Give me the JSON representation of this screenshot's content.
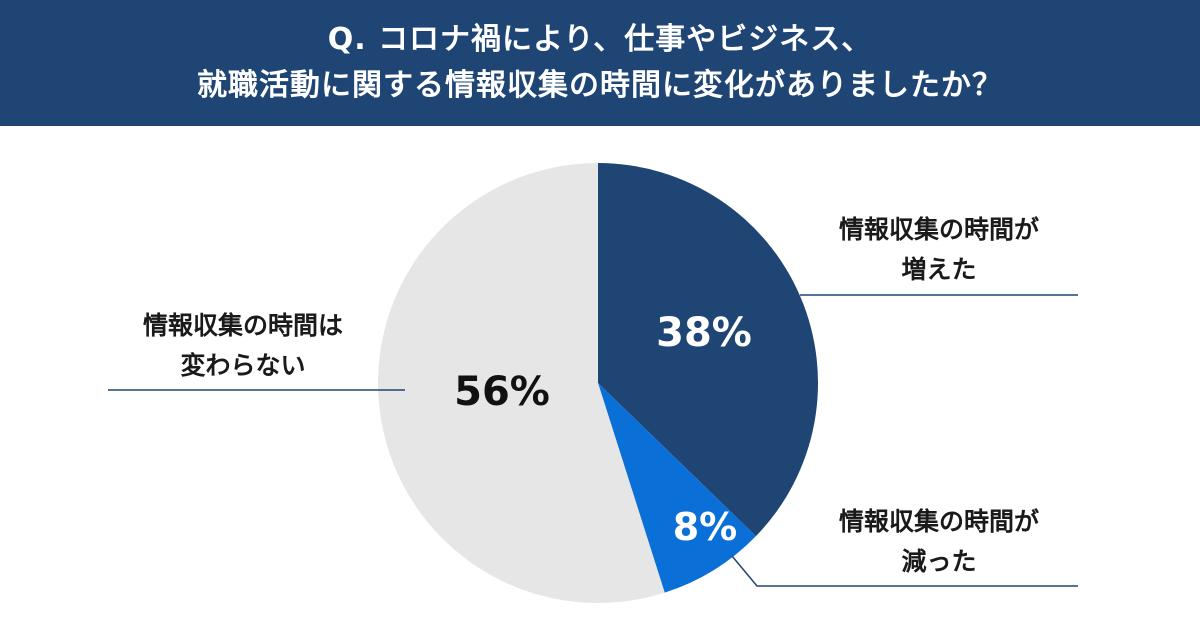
{
  "header": {
    "title_line1": "Q. コロナ禍により、仕事やビジネス、",
    "title_line2": "就職活動に関する情報収集の時間に変化がありましたか？"
  },
  "colors": {
    "header_bg": "#1e4574",
    "increased": "#1e4574",
    "decreased": "#0a6fd6",
    "unchanged": "#e6e6e6",
    "leader_line": "#1e4574"
  },
  "chart_data": {
    "type": "pie",
    "start_angle_deg": 0,
    "direction": "clockwise",
    "slices": [
      {
        "key": "increased",
        "label_line1": "情報収集の時間が",
        "label_line2": "増えた",
        "value": 38,
        "display": "38%"
      },
      {
        "key": "decreased",
        "label_line1": "情報収集の時間が",
        "label_line2": "減った",
        "value": 8,
        "display": "8%"
      },
      {
        "key": "unchanged",
        "label_line1": "情報収集の時間は",
        "label_line2": "変わらない",
        "value": 56,
        "display": "56%"
      }
    ]
  }
}
